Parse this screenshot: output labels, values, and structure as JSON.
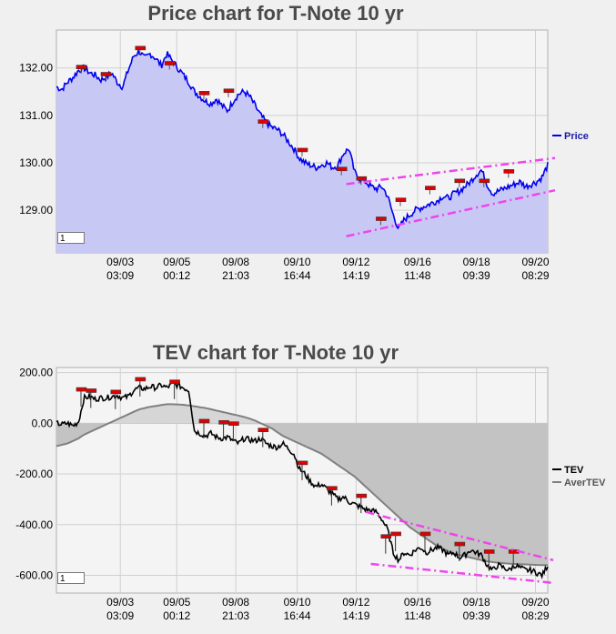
{
  "chart_data": [
    {
      "type": "area",
      "title": "Price chart for T-Note 10 yr",
      "ylim": [
        128.1,
        132.8
      ],
      "y_ticks": [
        129.0,
        130.0,
        131.0,
        132.0
      ],
      "y_tick_labels": [
        "129.00",
        "130.00",
        "131.00",
        "132.00"
      ],
      "x_ticks": [
        {
          "date": "09/03",
          "time": "03:09"
        },
        {
          "date": "09/05",
          "time": "00:12"
        },
        {
          "date": "09/08",
          "time": "21:03"
        },
        {
          "date": "09/10",
          "time": "16:44"
        },
        {
          "date": "09/12",
          "time": "14:19"
        },
        {
          "date": "09/16",
          "time": "11:48"
        },
        {
          "date": "09/18",
          "time": "09:39"
        },
        {
          "date": "09/20",
          "time": "08:29"
        }
      ],
      "series": [
        {
          "name": "Price",
          "color": "#0000ee",
          "fill": "#c8c8f5",
          "values": [
            131.6,
            131.55,
            131.7,
            131.8,
            131.95,
            132.0,
            131.9,
            131.85,
            131.75,
            131.8,
            131.9,
            131.7,
            131.6,
            131.95,
            132.25,
            132.35,
            132.2,
            132.3,
            132.2,
            132.05,
            132.3,
            132.15,
            132.0,
            131.85,
            131.7,
            131.5,
            131.4,
            131.3,
            131.25,
            131.35,
            131.2,
            131.1,
            131.3,
            131.45,
            131.5,
            131.4,
            131.2,
            131.0,
            130.85,
            130.75,
            130.7,
            130.6,
            130.45,
            130.3,
            130.1,
            130.0,
            129.95,
            129.9,
            129.95,
            130.0,
            129.9,
            129.95,
            130.2,
            130.3,
            129.8,
            129.65,
            129.6,
            129.5,
            129.45,
            129.5,
            129.3,
            128.9,
            128.6,
            128.8,
            128.9,
            129.0,
            129.05,
            129.1,
            129.15,
            129.2,
            129.3,
            129.25,
            129.35,
            129.4,
            129.5,
            129.6,
            129.75,
            129.85,
            129.55,
            129.35,
            129.4,
            129.45,
            129.5,
            129.55,
            129.6,
            129.5,
            129.55,
            129.6,
            129.7,
            129.95
          ]
        }
      ],
      "legend_position": "right",
      "grid": true,
      "trend_channel": {
        "color": "#ee44ee",
        "upper": [
          [
            0.59,
            129.55
          ],
          [
            1.0,
            130.1
          ]
        ],
        "lower": [
          [
            0.59,
            128.45
          ],
          [
            1.0,
            129.42
          ]
        ]
      },
      "markers": [
        [
          0.05,
          132.0
        ],
        [
          0.1,
          131.85
        ],
        [
          0.17,
          132.4
        ],
        [
          0.23,
          132.08
        ],
        [
          0.3,
          131.45
        ],
        [
          0.35,
          131.5
        ],
        [
          0.42,
          130.85
        ],
        [
          0.5,
          130.25
        ],
        [
          0.58,
          129.85
        ],
        [
          0.62,
          129.65
        ],
        [
          0.66,
          128.8
        ],
        [
          0.7,
          129.2
        ],
        [
          0.76,
          129.45
        ],
        [
          0.82,
          129.6
        ],
        [
          0.87,
          129.6
        ],
        [
          0.92,
          129.8
        ]
      ],
      "zoom": "1"
    },
    {
      "type": "line",
      "title": "TEV chart for T-Note 10 yr",
      "ylim": [
        -670,
        220
      ],
      "y_ticks": [
        -600,
        -400,
        -200,
        0,
        200
      ],
      "y_tick_labels": [
        "-600.00",
        "-400.00",
        "-200.00",
        "0.00",
        "200.00"
      ],
      "series": [
        {
          "name": "TEV",
          "color": "#000000",
          "values": [
            0,
            -5,
            0,
            -10,
            5,
            100,
            105,
            95,
            100,
            100,
            105,
            110,
            100,
            105,
            130,
            140,
            135,
            145,
            140,
            150,
            140,
            155,
            150,
            140,
            130,
            -30,
            -40,
            -50,
            -40,
            -55,
            -60,
            -55,
            -70,
            -80,
            -60,
            -65,
            -70,
            -60,
            -80,
            -90,
            -95,
            -80,
            -100,
            -120,
            -180,
            -200,
            -230,
            -250,
            -240,
            -260,
            -280,
            -300,
            -290,
            -310,
            -320,
            -330,
            -340,
            -345,
            -350,
            -380,
            -420,
            -510,
            -540,
            -510,
            -520,
            -500,
            -490,
            -510,
            -500,
            -490,
            -500,
            -520,
            -510,
            -530,
            -520,
            -500,
            -510,
            -520,
            -560,
            -580,
            -560,
            -570,
            -580,
            -560,
            -570,
            -580,
            -580,
            -590,
            -600,
            -560
          ]
        },
        {
          "name": "AverTEV",
          "color": "#808080",
          "values": [
            -90,
            -85,
            -80,
            -70,
            -60,
            -45,
            -35,
            -25,
            -15,
            -5,
            5,
            15,
            25,
            35,
            45,
            55,
            60,
            65,
            68,
            72,
            75,
            75,
            74,
            73,
            70,
            67,
            63,
            60,
            55,
            50,
            45,
            40,
            35,
            30,
            25,
            18,
            10,
            0,
            -10,
            -20,
            -35,
            -50,
            -60,
            -70,
            -80,
            -90,
            -100,
            -110,
            -120,
            -135,
            -150,
            -165,
            -180,
            -195,
            -210,
            -230,
            -250,
            -270,
            -290,
            -310,
            -330,
            -350,
            -370,
            -390,
            -410,
            -425,
            -440,
            -455,
            -470,
            -485,
            -495,
            -505,
            -515,
            -520,
            -525,
            -530,
            -535,
            -540,
            -545,
            -548,
            -550,
            -552,
            -554,
            -555,
            -556,
            -557,
            -558,
            -559,
            -560,
            -560
          ]
        }
      ],
      "legend_position": "right",
      "grid": true,
      "trend_channel": {
        "color": "#ee44ee",
        "upper": [
          [
            0.63,
            -350
          ],
          [
            1.0,
            -540
          ]
        ],
        "lower": [
          [
            0.64,
            -555
          ],
          [
            1.0,
            -630
          ]
        ]
      },
      "markers": [
        [
          0.05,
          130
        ],
        [
          0.07,
          125
        ],
        [
          0.12,
          120
        ],
        [
          0.17,
          170
        ],
        [
          0.24,
          160
        ],
        [
          0.3,
          5
        ],
        [
          0.34,
          0
        ],
        [
          0.36,
          -5
        ],
        [
          0.42,
          -30
        ],
        [
          0.5,
          -160
        ],
        [
          0.56,
          -260
        ],
        [
          0.62,
          -290
        ],
        [
          0.67,
          -450
        ],
        [
          0.69,
          -440
        ],
        [
          0.75,
          -440
        ],
        [
          0.82,
          -480
        ],
        [
          0.88,
          -510
        ],
        [
          0.93,
          -510
        ]
      ],
      "zoom": "1"
    }
  ]
}
